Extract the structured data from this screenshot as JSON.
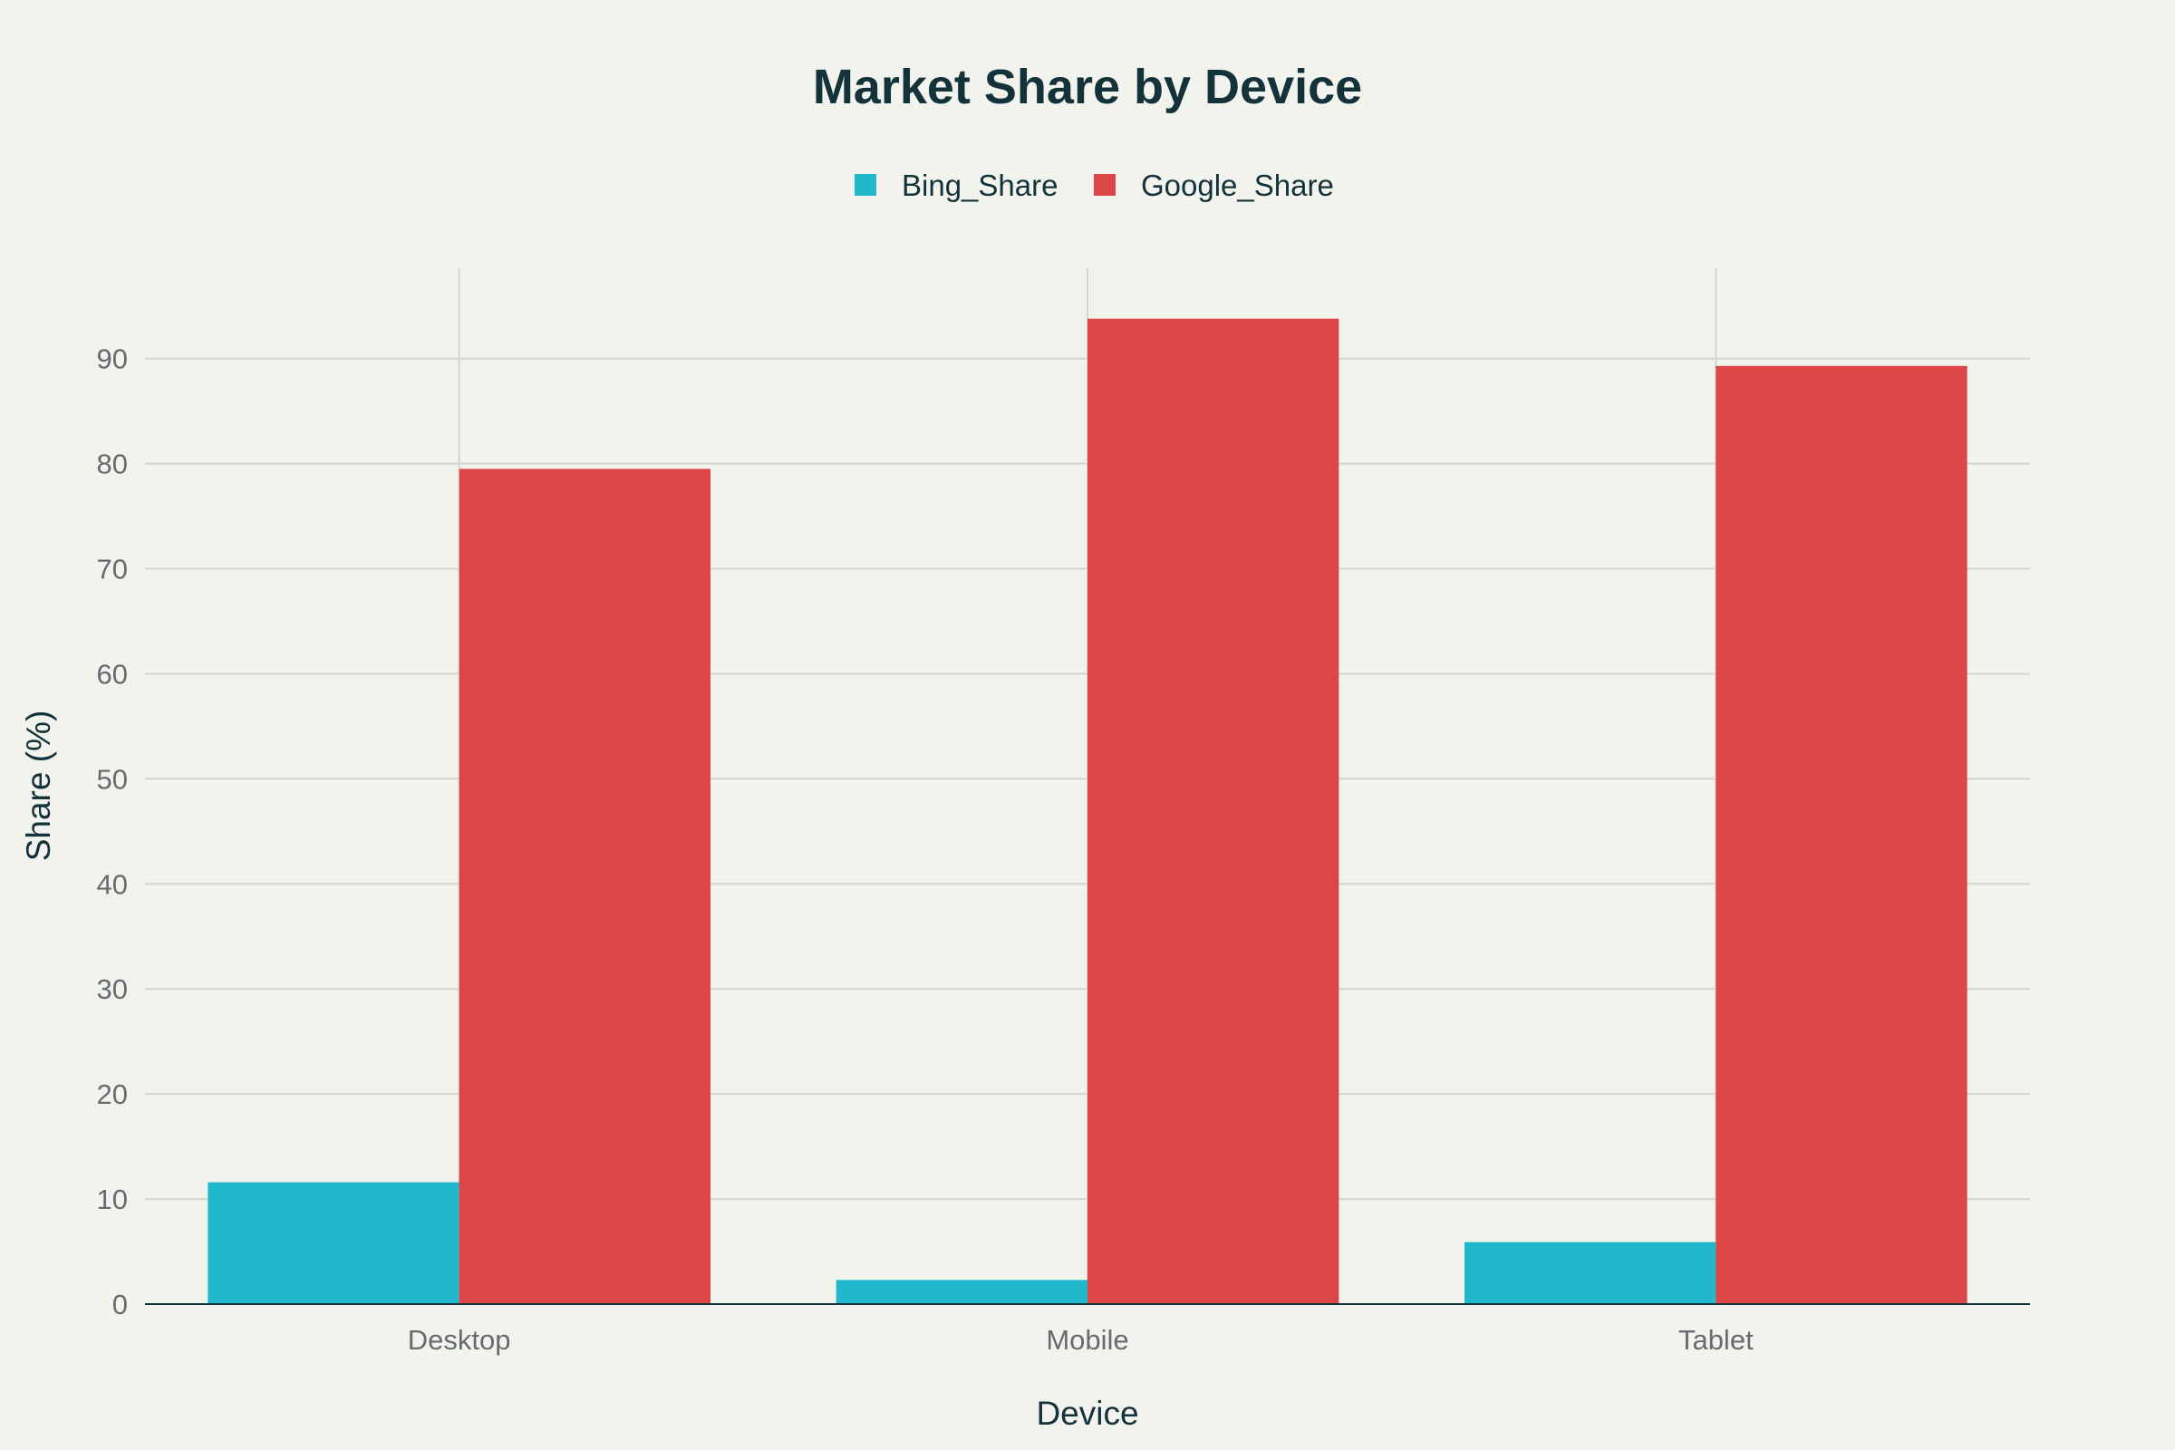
{
  "chart_data": {
    "type": "bar",
    "title": "Market Share by Device",
    "xlabel": "Device",
    "ylabel": "Share (%)",
    "categories": [
      "Desktop",
      "Mobile",
      "Tablet"
    ],
    "series": [
      {
        "name": "Bing_Share",
        "values": [
          11.6,
          2.3,
          5.9
        ],
        "color": "#21b7cc"
      },
      {
        "name": "Google_Share",
        "values": [
          79.5,
          93.8,
          89.3
        ],
        "color": "#dc4646"
      }
    ],
    "ylim": [
      0,
      98.6
    ],
    "yticks": [
      0,
      10,
      20,
      30,
      40,
      50,
      60,
      70,
      80,
      90
    ],
    "grid": true,
    "legend_position": "top-center",
    "barmode": "group"
  }
}
